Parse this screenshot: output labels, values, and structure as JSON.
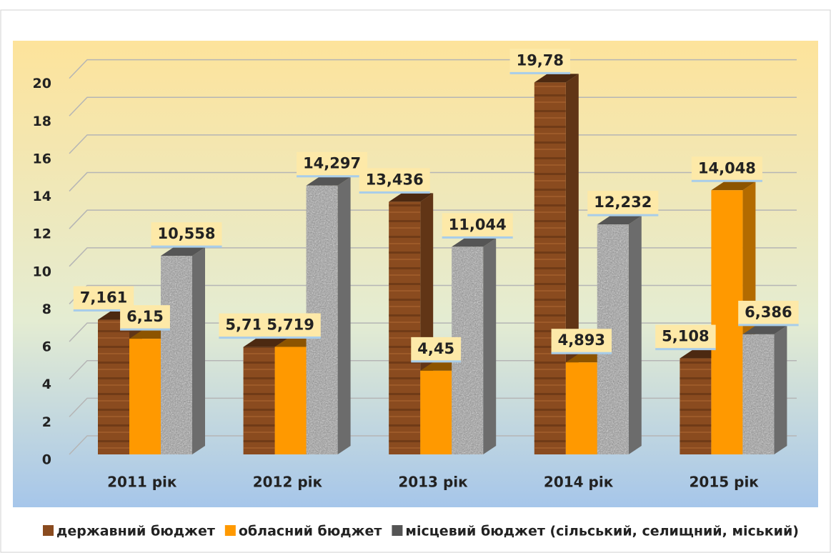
{
  "chart_data": {
    "type": "bar",
    "categories": [
      "2011 рік",
      "2012 рік",
      "2013 рік",
      "2014 рік",
      "2015 рік"
    ],
    "series": [
      {
        "name": "державний бюджет",
        "color": "#8a4b1f",
        "values": [
          7.161,
          5.712,
          13.436,
          19.78,
          5.108
        ],
        "value_labels": [
          "7,161",
          "5,712",
          "13,436",
          "19,78",
          "5,108"
        ]
      },
      {
        "name": "обласний бюджет",
        "color": "#ff9900",
        "values": [
          6.15,
          5.719,
          4.45,
          4.893,
          14.048
        ],
        "value_labels": [
          "6,15",
          "5,719",
          "4,45",
          "4,893",
          "14,048"
        ]
      },
      {
        "name": "місцевий бюджет (сільський, селищний, міський)",
        "color": "#9a9a9a",
        "values": [
          10.558,
          14.297,
          11.044,
          12.232,
          6.386
        ],
        "value_labels": [
          "10,558",
          "14,297",
          "11,044",
          "12,232",
          "6,386"
        ]
      }
    ],
    "ylim": [
      0,
      22
    ],
    "yticks": [
      0,
      2,
      4,
      6,
      8,
      10,
      12,
      14,
      16,
      18,
      20
    ],
    "grid": true,
    "legend": "bottom"
  }
}
